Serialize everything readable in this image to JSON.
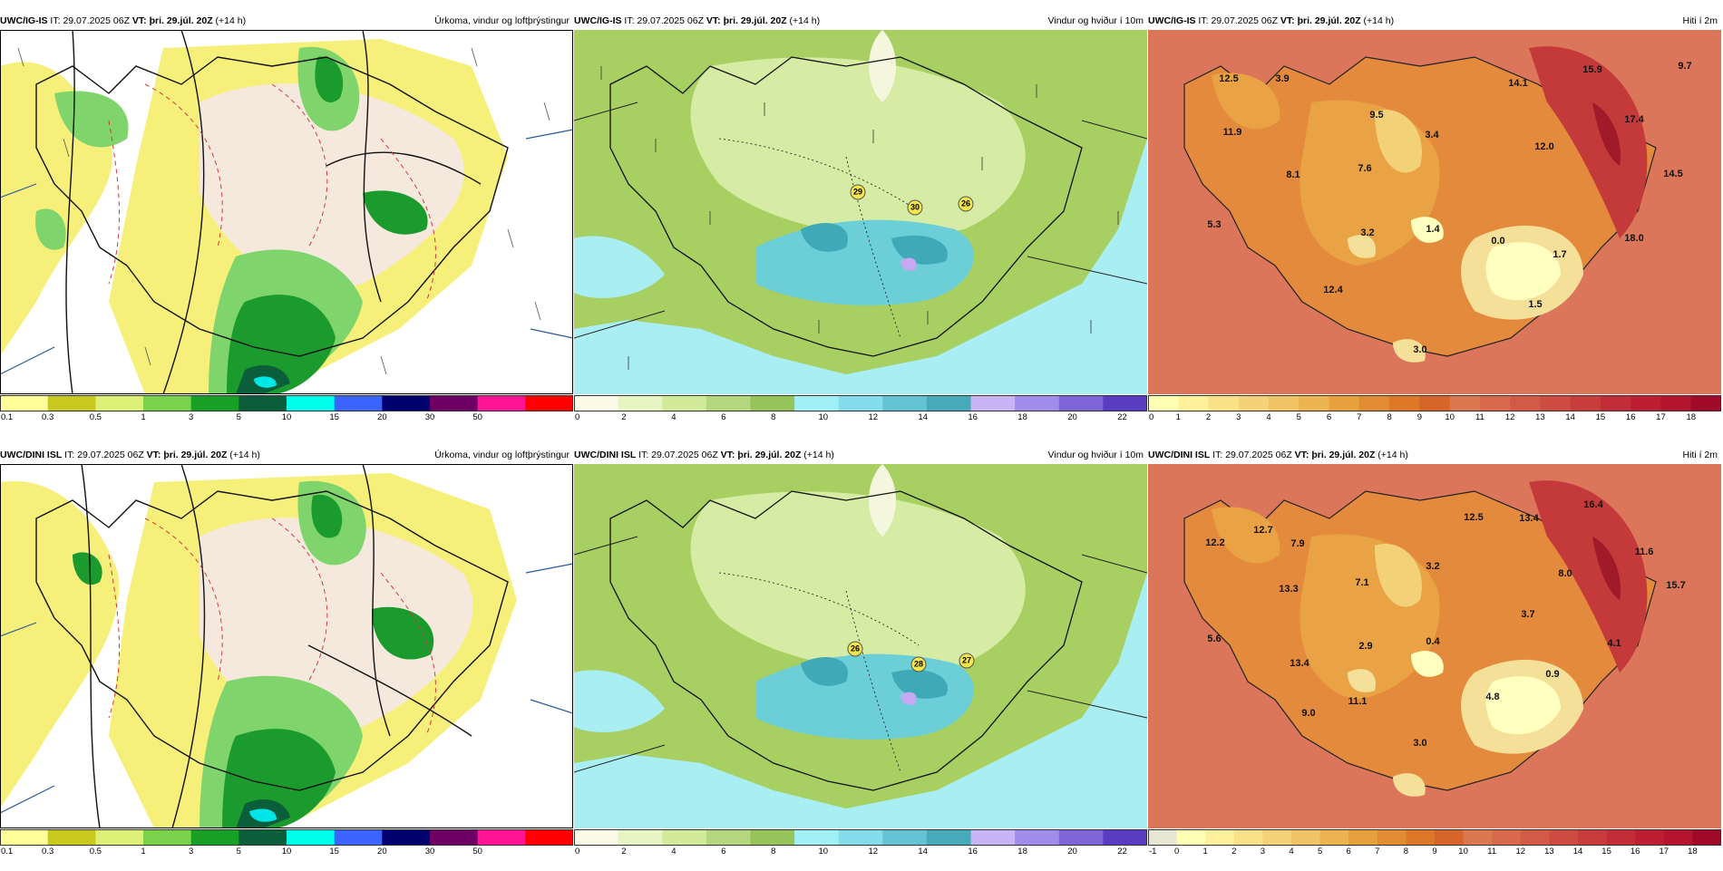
{
  "rows": [
    {
      "model": "UWC/IG-IS",
      "it_label": "IT:",
      "it_value": "29.07.2025 06Z",
      "vt_label": "VT:",
      "vt_value": "þri. 29.júl. 20Z",
      "lead": "(+14 h)"
    },
    {
      "model": "UWC/DINI ISL",
      "it_label": "IT:",
      "it_value": "29.07.2025 06Z",
      "vt_label": "VT:",
      "vt_value": "þri. 29.júl. 20Z",
      "lead": "(+14 h)"
    }
  ],
  "panel_titles": {
    "precip": "Úrkoma, vindur og loftþrýstingur",
    "wind": "Vindur og hviður í 10m",
    "temp": "Hiti í 2m"
  },
  "colorbars": {
    "precip": {
      "ticks": [
        "0.1",
        "0.3",
        "0.5",
        "1",
        "3",
        "5",
        "10",
        "15",
        "20",
        "30",
        "50"
      ],
      "colors": [
        "#ffff9a",
        "#c8c81e",
        "#dcf078",
        "#78d24a",
        "#17a025",
        "#0b5e3a",
        "#00ffea",
        "#3c64ff",
        "#00006e",
        "#6e0064",
        "#ff1493",
        "#ff0000"
      ]
    },
    "wind": {
      "ticks": [
        "0",
        "2",
        "4",
        "6",
        "8",
        "10",
        "12",
        "14",
        "16",
        "18",
        "20",
        "22"
      ],
      "colors": [
        "#fafae6",
        "#e6f5c3",
        "#d2eb9b",
        "#b4d77d",
        "#96c35a",
        "#a0f0f5",
        "#82dcea",
        "#64c3d2",
        "#46aab9",
        "#c8b4f5",
        "#a08ceb",
        "#7d64d7",
        "#5a3cc3"
      ]
    },
    "temp_top": {
      "ticks": [
        "0",
        "1",
        "2",
        "3",
        "4",
        "5",
        "6",
        "7",
        "8",
        "9",
        "10",
        "11",
        "12",
        "13",
        "14",
        "15",
        "16",
        "17",
        "18"
      ],
      "colors": [
        "#ffffb4",
        "#fff09b",
        "#fae187",
        "#f5d278",
        "#f0c364",
        "#ebb450",
        "#e6a03c",
        "#e18c32",
        "#dc7828",
        "#d76428",
        "#dc7850",
        "#d9694b",
        "#d25a46",
        "#cd4b41",
        "#c83c3c",
        "#c32d37",
        "#be1e32",
        "#b4142d",
        "#a00a28"
      ]
    },
    "temp_bottom": {
      "ticks": [
        "-1",
        "0",
        "1",
        "2",
        "3",
        "4",
        "5",
        "6",
        "7",
        "8",
        "9",
        "10",
        "11",
        "12",
        "13",
        "14",
        "15",
        "16",
        "17",
        "18"
      ],
      "colors": [
        "#e6e6d2",
        "#ffffb4",
        "#fff09b",
        "#fae187",
        "#f5d278",
        "#f0c364",
        "#ebb450",
        "#e6a03c",
        "#e18c32",
        "#dc7828",
        "#d76428",
        "#dc7850",
        "#d9694b",
        "#d25a46",
        "#cd4b41",
        "#c83c3c",
        "#c32d37",
        "#be1e32",
        "#b4142d",
        "#a00a28"
      ]
    }
  },
  "temp_labels_top": [
    "12.5",
    "3.9",
    "11.9",
    "9.5",
    "8.1",
    "7.6",
    "3.4",
    "14.1",
    "15.9",
    "9.7",
    "12.0",
    "17.4",
    "14.5",
    "5.3",
    "3.2",
    "1.4",
    "0.0",
    "1.7",
    "18.0",
    "12.4",
    "1.5",
    "3.0"
  ],
  "temp_labels_bottom": [
    "12.2",
    "12.7",
    "7.9",
    "12.5",
    "13.4",
    "16.4",
    "11.6",
    "15.7",
    "13.3",
    "3.2",
    "7.1",
    "8.0",
    "3.7",
    "5.6",
    "2.9",
    "0.4",
    "4.1",
    "13.4",
    "0.9",
    "11.1",
    "4.8",
    "9.0",
    "3.0"
  ],
  "gusts_top": [
    "29",
    "30",
    "26"
  ],
  "gusts_bottom": [
    "26",
    "28",
    "27"
  ]
}
